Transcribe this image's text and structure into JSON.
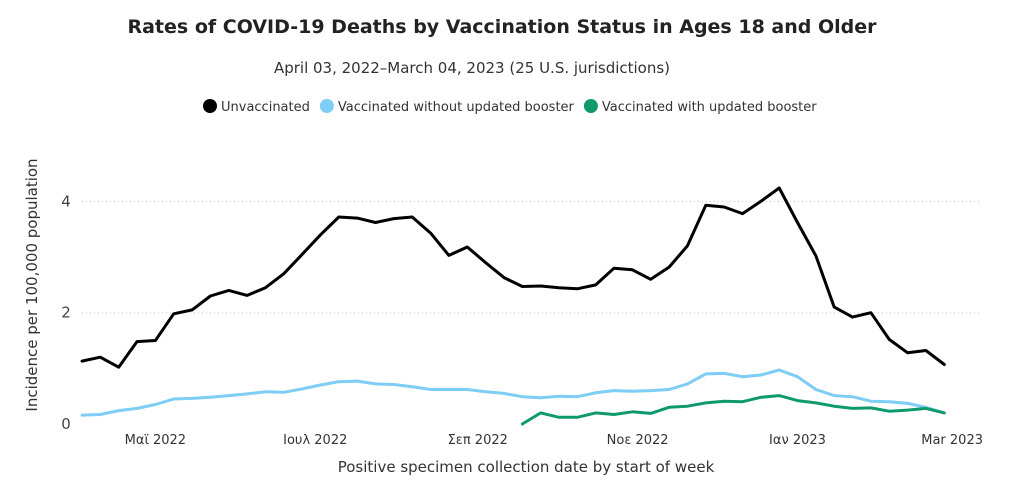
{
  "chart_data": {
    "type": "line",
    "title": "Rates of COVID-19 Deaths by Vaccination Status in Ages 18 and Older",
    "subtitle": "April 03, 2022–March 04, 2023 (25 U.S. jurisdictions)",
    "xlabel": "Positive specimen collection date by start of week",
    "ylabel": "Incidence per 100,000 population",
    "ylim": [
      0,
      4.6
    ],
    "yticks": [
      0,
      2,
      4
    ],
    "grid": true,
    "legend_position": "top",
    "x_ticks": [
      {
        "date": "2022-05-01",
        "label": "Μαϊ 2022"
      },
      {
        "date": "2022-07-01",
        "label": "Ιουλ 2022"
      },
      {
        "date": "2022-09-01",
        "label": "Σεπ 2022"
      },
      {
        "date": "2022-11-01",
        "label": "Νοε 2022"
      },
      {
        "date": "2023-01-01",
        "label": "Ιαν 2023"
      },
      {
        "date": "2023-03-01",
        "label": "Mar 2023"
      }
    ],
    "x_dates": [
      "2022-04-03",
      "2022-04-10",
      "2022-04-17",
      "2022-04-24",
      "2022-05-01",
      "2022-05-08",
      "2022-05-15",
      "2022-05-22",
      "2022-05-29",
      "2022-06-05",
      "2022-06-12",
      "2022-06-19",
      "2022-06-26",
      "2022-07-03",
      "2022-07-10",
      "2022-07-17",
      "2022-07-24",
      "2022-07-31",
      "2022-08-07",
      "2022-08-14",
      "2022-08-21",
      "2022-08-28",
      "2022-09-04",
      "2022-09-11",
      "2022-09-18",
      "2022-09-25",
      "2022-10-02",
      "2022-10-09",
      "2022-10-16",
      "2022-10-23",
      "2022-10-30",
      "2022-11-06",
      "2022-11-13",
      "2022-11-20",
      "2022-11-27",
      "2022-12-04",
      "2022-12-11",
      "2022-12-18",
      "2022-12-25",
      "2023-01-01",
      "2023-01-08",
      "2023-01-15",
      "2023-01-22",
      "2023-01-29",
      "2023-02-05",
      "2023-02-12",
      "2023-02-19",
      "2023-02-26",
      "2023-03-04"
    ],
    "series": [
      {
        "name": "Unvaccinated",
        "color": "#000000",
        "values": [
          1.13,
          1.2,
          1.02,
          1.48,
          1.5,
          1.98,
          2.05,
          2.3,
          2.4,
          2.31,
          2.45,
          2.7,
          3.05,
          3.4,
          3.72,
          3.7,
          3.62,
          3.69,
          3.72,
          3.43,
          3.03,
          3.18,
          2.9,
          2.63,
          2.47,
          2.48,
          2.45,
          2.43,
          2.5,
          2.8,
          2.77,
          2.6,
          2.82,
          3.2,
          3.93,
          3.9,
          3.78,
          4.0,
          4.24,
          3.62,
          3.02,
          2.1,
          1.92,
          2.0,
          1.52,
          1.28,
          1.32,
          1.07,
          null
        ]
      },
      {
        "name": "Vaccinated without updated booster",
        "color": "#7dcdf5",
        "values": [
          0.16,
          0.17,
          0.24,
          0.28,
          0.35,
          0.45,
          0.46,
          0.48,
          0.51,
          0.54,
          0.58,
          0.57,
          0.63,
          0.7,
          0.76,
          0.77,
          0.72,
          0.71,
          0.67,
          0.62,
          0.62,
          0.62,
          0.58,
          0.55,
          0.49,
          0.47,
          0.5,
          0.49,
          0.56,
          0.6,
          0.59,
          0.6,
          0.62,
          0.72,
          0.9,
          0.91,
          0.85,
          0.88,
          0.97,
          0.85,
          0.62,
          0.51,
          0.49,
          0.41,
          0.4,
          0.37,
          0.3,
          0.2,
          null
        ]
      },
      {
        "name": "Vaccinated with updated booster",
        "color": "#0f9a6e",
        "values": [
          null,
          null,
          null,
          null,
          null,
          null,
          null,
          null,
          null,
          null,
          null,
          null,
          null,
          null,
          null,
          null,
          null,
          null,
          null,
          null,
          null,
          null,
          null,
          null,
          0.0,
          0.2,
          0.12,
          0.12,
          0.2,
          0.17,
          0.22,
          0.19,
          0.3,
          0.32,
          0.38,
          0.41,
          0.4,
          0.48,
          0.51,
          0.42,
          0.38,
          0.32,
          0.28,
          0.29,
          0.23,
          0.25,
          0.28,
          0.2,
          null
        ]
      }
    ]
  }
}
